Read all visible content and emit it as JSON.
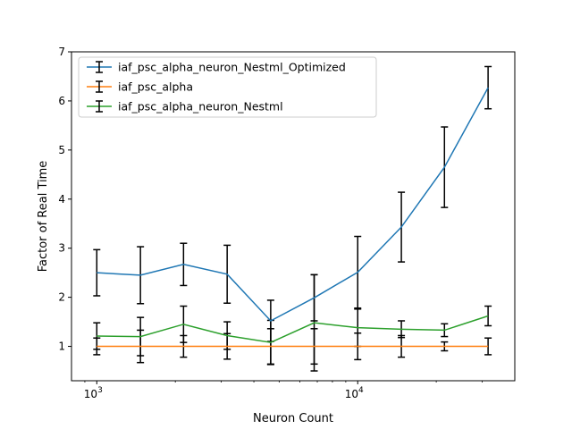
{
  "chart_data": {
    "type": "line",
    "xlabel": "Neuron Count",
    "ylabel": "Factor of Real Time",
    "xscale": "log",
    "xlim": [
      800,
      40000
    ],
    "ylim": [
      0.3,
      7
    ],
    "yticks": [
      1,
      2,
      3,
      4,
      5,
      6,
      7
    ],
    "xticks": [
      {
        "value": 1000,
        "base": "10",
        "exp": "3"
      },
      {
        "value": 10000,
        "base": "10",
        "exp": "4"
      }
    ],
    "grid": false,
    "legend_position": "upper-left",
    "x": [
      1000,
      1470,
      2150,
      3160,
      4640,
      6810,
      10000,
      14700,
      21500,
      31600
    ],
    "series": [
      {
        "name": "iaf_psc_alpha_neuron_Nestml_Optimized",
        "color": "#1f77b4",
        "values": [
          2.5,
          2.45,
          2.67,
          2.47,
          1.52,
          1.99,
          2.51,
          3.43,
          4.65,
          6.27
        ],
        "error": [
          0.47,
          0.58,
          0.43,
          0.59,
          0.42,
          0.47,
          0.73,
          0.71,
          0.82,
          0.43
        ]
      },
      {
        "name": "iaf_psc_alpha",
        "color": "#ff7f0e",
        "values": [
          1.0,
          1.0,
          1.0,
          1.0,
          1.0,
          1.0,
          1.0,
          1.0,
          1.0,
          1.0
        ],
        "error": [
          0.17,
          0.33,
          0.22,
          0.26,
          0.36,
          0.36,
          0.27,
          0.22,
          0.09,
          0.17
        ]
      },
      {
        "name": "iaf_psc_alpha_neuron_Nestml",
        "color": "#2ca02c",
        "values": [
          1.21,
          1.2,
          1.45,
          1.22,
          1.08,
          1.48,
          1.38,
          1.35,
          1.33,
          1.62
        ],
        "error": [
          0.27,
          0.39,
          0.37,
          0.28,
          0.45,
          0.98,
          0.38,
          0.17,
          0.13,
          0.2
        ]
      }
    ]
  }
}
